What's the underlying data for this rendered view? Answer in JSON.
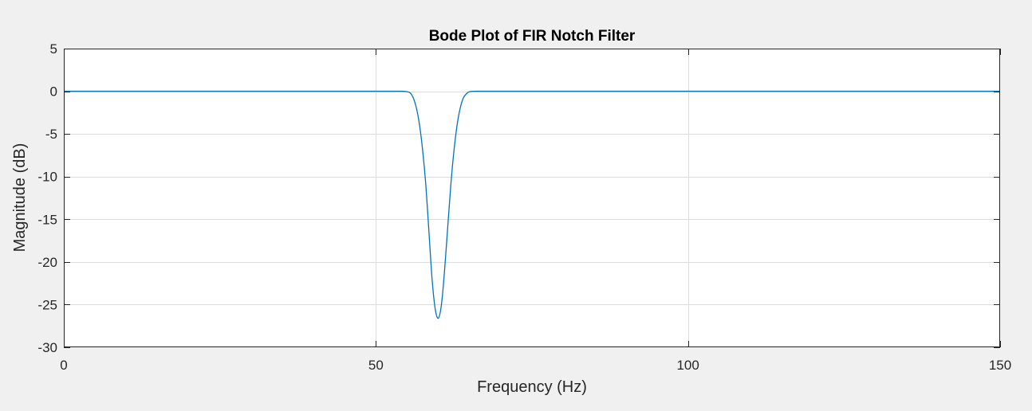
{
  "chart_data": {
    "type": "line",
    "title": "Bode Plot of FIR Notch Filter",
    "xlabel": "Frequency (Hz)",
    "ylabel": "Magnitude (dB)",
    "xlim": [
      0,
      150
    ],
    "ylim": [
      -30,
      5
    ],
    "xticks": [
      0,
      50,
      100,
      150
    ],
    "yticks": [
      5,
      0,
      -5,
      -10,
      -15,
      -20,
      -25,
      -30
    ],
    "xtick_labels": [
      "0",
      "50",
      "100",
      "150"
    ],
    "ytick_labels": [
      "5",
      "0",
      "-5",
      "-10",
      "-15",
      "-20",
      "-25",
      "-30"
    ],
    "grid": true,
    "series": [
      {
        "color": "#0072bd",
        "x": [
          0,
          10,
          20,
          30,
          40,
          50,
          54,
          55,
          55.5,
          56,
          56.5,
          57,
          57.5,
          58,
          58.5,
          59,
          59.5,
          60,
          60.5,
          61,
          61.5,
          62,
          62.5,
          63,
          63.5,
          64,
          64.5,
          65,
          66,
          70,
          80,
          90,
          100,
          110,
          120,
          130,
          140,
          150
        ],
        "y": [
          0,
          0,
          0,
          0,
          0,
          0,
          0,
          -0.05,
          -0.2,
          -0.8,
          -2.0,
          -4.0,
          -7.0,
          -11.0,
          -16.5,
          -22.0,
          -25.5,
          -26.6,
          -25.0,
          -21.0,
          -16.0,
          -11.0,
          -7.0,
          -4.0,
          -2.0,
          -0.8,
          -0.3,
          -0.05,
          0,
          0,
          0,
          0,
          0,
          0,
          0,
          0,
          0,
          0
        ]
      }
    ]
  }
}
